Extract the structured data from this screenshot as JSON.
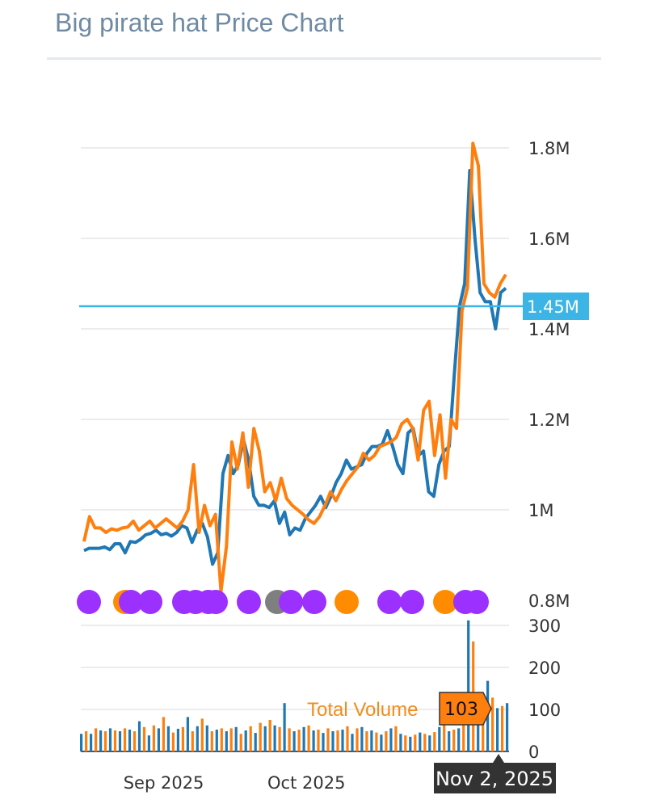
{
  "title": "Big pirate hat Price Chart",
  "colors": {
    "series_blue": "#1f77b4",
    "series_orange": "#ff7f0e",
    "current_line": "#3cb4e5",
    "dot_purple": "#9b30ff",
    "dot_orange": "#ff8c00",
    "dot_gray": "#7f7f7f",
    "grid": "#e6e6e6",
    "tooltip_bg": "#333333"
  },
  "chart_data": {
    "type": "line",
    "price_axis": {
      "ticks": [
        800000,
        1000000,
        1200000,
        1400000,
        1600000,
        1800000
      ],
      "labels": [
        "0.8M",
        "1M",
        "1.2M",
        "1.4M",
        "1.6M",
        "1.8M"
      ],
      "ylim": [
        800000,
        1800000
      ]
    },
    "x_axis": {
      "labels": [
        "Sep 2025",
        "Oct 2025"
      ],
      "label_days": [
        18,
        49
      ],
      "range_days": [
        0,
        93
      ]
    },
    "current_price": {
      "value": 1450000,
      "label": "1.45M"
    },
    "series": [
      {
        "name": "price-blue",
        "color": "#1f77b4",
        "values": [
          910000,
          915000,
          915000,
          915000,
          918000,
          912000,
          925000,
          925000,
          905000,
          930000,
          928000,
          935000,
          945000,
          948000,
          955000,
          945000,
          948000,
          942000,
          950000,
          965000,
          960000,
          928000,
          955000,
          970000,
          940000,
          880000,
          905000,
          1080000,
          1120000,
          1080000,
          1100000,
          1155000,
          1110000,
          1030000,
          1010000,
          1010000,
          1005000,
          1020000,
          970000,
          995000,
          945000,
          960000,
          955000,
          980000,
          995000,
          1010000,
          1030000,
          1005000,
          1030000,
          1060000,
          1080000,
          1110000,
          1090000,
          1095000,
          1100000,
          1125000,
          1140000,
          1140000,
          1145000,
          1175000,
          1140000,
          1100000,
          1080000,
          1170000,
          1180000,
          1120000,
          1130000,
          1040000,
          1030000,
          1100000,
          1130000,
          1140000,
          1300000,
          1450000,
          1500000,
          1750000,
          1600000,
          1480000,
          1460000,
          1460000,
          1400000,
          1480000,
          1490000
        ]
      },
      {
        "name": "price-orange",
        "color": "#ff7f0e",
        "values": [
          930000,
          985000,
          960000,
          960000,
          950000,
          958000,
          955000,
          960000,
          962000,
          975000,
          955000,
          965000,
          975000,
          960000,
          970000,
          980000,
          970000,
          960000,
          975000,
          1000000,
          1100000,
          950000,
          1010000,
          965000,
          990000,
          820000,
          920000,
          1150000,
          1090000,
          1170000,
          1050000,
          1180000,
          1130000,
          1040000,
          1060000,
          1020000,
          1070000,
          1025000,
          1010000,
          1000000,
          990000,
          978000,
          970000,
          985000,
          1010000,
          1040000,
          1020000,
          1045000,
          1065000,
          1080000,
          1095000,
          1125000,
          1110000,
          1120000,
          1140000,
          1145000,
          1150000,
          1160000,
          1190000,
          1200000,
          1180000,
          1110000,
          1220000,
          1240000,
          1120000,
          1210000,
          1070000,
          1200000,
          1180000,
          1440000,
          1490000,
          1810000,
          1760000,
          1500000,
          1480000,
          1470000,
          1500000,
          1520000
        ]
      }
    ],
    "events": [
      "purple",
      "orange",
      "purple",
      "purple",
      "purple",
      "purple",
      "purple",
      "purple",
      "purple",
      "gray",
      "purple",
      "purple",
      "orange",
      "purple",
      "purple",
      "orange",
      "purple",
      "purple"
    ],
    "volume": {
      "axis_ticks": [
        0,
        100,
        200,
        300
      ],
      "axis_labels": [
        "0",
        "100",
        "200",
        "300"
      ],
      "ylim": [
        0,
        310
      ],
      "label": "Total Volume",
      "hover_value": "103",
      "hover_date": "Nov 2, 2025",
      "bars": [
        42,
        48,
        42,
        55,
        50,
        48,
        55,
        50,
        48,
        55,
        52,
        48,
        72,
        58,
        38,
        62,
        55,
        82,
        60,
        45,
        54,
        58,
        82,
        48,
        60,
        78,
        62,
        48,
        52,
        55,
        48,
        55,
        58,
        42,
        50,
        60,
        44,
        68,
        60,
        75,
        62,
        58,
        115,
        55,
        48,
        52,
        58,
        62,
        50,
        52,
        44,
        55,
        48,
        50,
        52,
        60,
        42,
        55,
        58,
        48,
        50,
        45,
        40,
        48,
        55,
        60,
        42,
        38,
        35,
        40,
        45,
        42,
        38,
        46,
        58,
        66,
        48,
        52,
        55,
        70,
        312,
        262,
        102,
        105,
        168,
        128,
        103,
        108,
        115
      ]
    }
  }
}
